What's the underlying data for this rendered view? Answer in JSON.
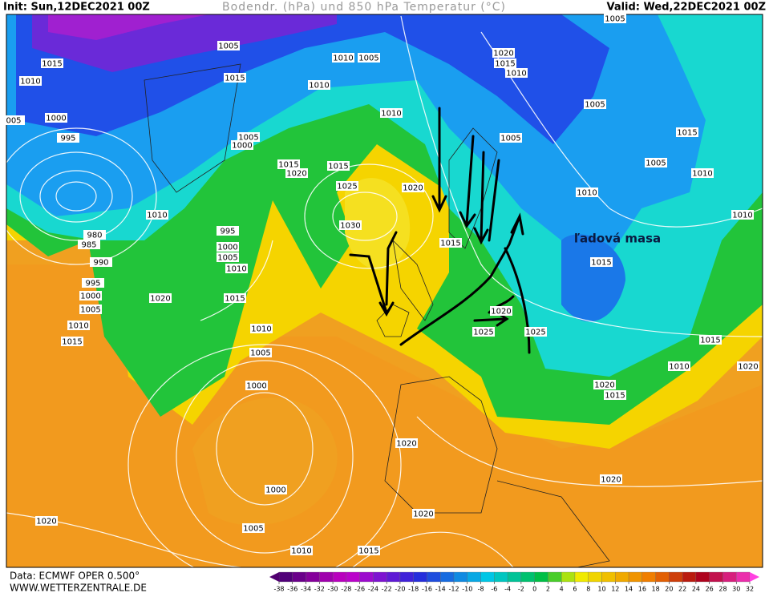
{
  "header": {
    "init": "Init: Sun,12DEC2021 00Z",
    "title": "Bodendr. (hPa) und 850 hPa Temperatur (°C)",
    "valid": "Valid: Wed,22DEC2021 00Z"
  },
  "annotation": "ľadová masa",
  "isobar_labels": [
    "1015",
    "1010",
    "1005",
    "1015",
    "1010",
    "1005",
    "1010",
    "1010",
    "1020",
    "1015",
    "1010",
    "1005",
    "1005",
    "1005",
    "1015",
    "1005",
    "1010",
    "1010",
    "1000",
    "995",
    "1005",
    "1000",
    "1015",
    "1020",
    "1015",
    "1025",
    "1020",
    "1030",
    "1010",
    "980",
    "985",
    "990",
    "995",
    "1000",
    "1005",
    "1010",
    "1015",
    "1020",
    "1015",
    "995",
    "1000",
    "1005",
    "1010",
    "1015",
    "1015",
    "1020",
    "1025",
    "1025",
    "1010",
    "1005",
    "1000",
    "1020",
    "1000",
    "1005",
    "1010",
    "1015",
    "1020",
    "1020",
    "1020",
    "1020",
    "1015",
    "1010",
    "1015",
    "1020",
    "1010",
    "005"
  ],
  "footer": {
    "source": "Data: ECMWF OPER 0.500°",
    "site": "WWW.WETTERZENTRALE.DE"
  },
  "colorbar": {
    "ticks": [
      -38,
      -36,
      -34,
      -32,
      -30,
      -28,
      -26,
      -24,
      -22,
      -20,
      -18,
      -16,
      -14,
      -12,
      -10,
      -8,
      -6,
      -4,
      -2,
      0,
      2,
      4,
      6,
      8,
      10,
      12,
      14,
      16,
      18,
      20,
      22,
      24,
      26,
      28,
      30,
      32
    ]
  }
}
